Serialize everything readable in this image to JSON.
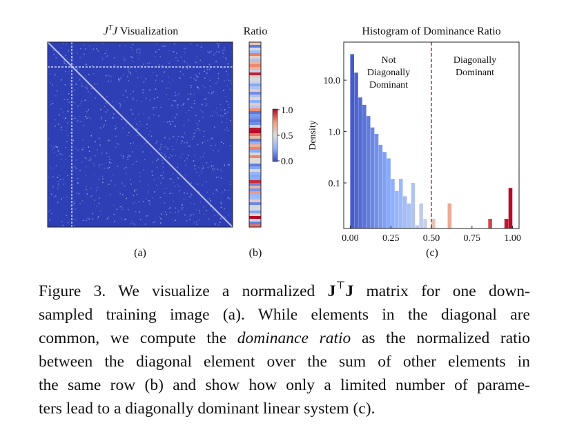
{
  "panel_a": {
    "title_prefix": "J",
    "title_sup": "T",
    "title_mid": "J",
    "title_suffix": " Visualization",
    "sublabel": "(a)"
  },
  "panel_b": {
    "title": "Ratio",
    "sublabel": "(b)",
    "colorbar_ticks": [
      "1.0",
      "0.5",
      "0.0"
    ]
  },
  "chart_data": {
    "type": "bar",
    "title": "Histogram of Dominance Ratio",
    "xlabel": "",
    "ylabel": "Density",
    "sublabel": "(c)",
    "x_ticks": [
      "0.00",
      "0.25",
      "0.50",
      "0.75",
      "1.00"
    ],
    "y_ticks": [
      "0.1",
      "1.0",
      "10.0"
    ],
    "y_scale": "log",
    "xlim": [
      -0.04,
      1.04
    ],
    "ylim": [
      0.013,
      55
    ],
    "threshold": 0.5,
    "annotations": {
      "left": [
        "Not",
        "Diagonally",
        "Dominant"
      ],
      "right": [
        "Diagonally",
        "Dominant"
      ]
    },
    "bins": [
      {
        "x": 0.0125,
        "density": 32
      },
      {
        "x": 0.0375,
        "density": 14
      },
      {
        "x": 0.0625,
        "density": 4.6
      },
      {
        "x": 0.0875,
        "density": 3.3
      },
      {
        "x": 0.1125,
        "density": 2.0
      },
      {
        "x": 0.1375,
        "density": 1.2
      },
      {
        "x": 0.1625,
        "density": 0.9
      },
      {
        "x": 0.1875,
        "density": 0.55
      },
      {
        "x": 0.2125,
        "density": 0.4
      },
      {
        "x": 0.2375,
        "density": 0.3
      },
      {
        "x": 0.2625,
        "density": 0.12
      },
      {
        "x": 0.2875,
        "density": 0.07
      },
      {
        "x": 0.3125,
        "density": 0.12
      },
      {
        "x": 0.3375,
        "density": 0.055
      },
      {
        "x": 0.3625,
        "density": 0.04
      },
      {
        "x": 0.3875,
        "density": 0.1
      },
      {
        "x": 0.4125,
        "density": 0.015
      },
      {
        "x": 0.4375,
        "density": 0.04
      },
      {
        "x": 0.4625,
        "density": 0.02
      },
      {
        "x": 0.5125,
        "density": 0.02
      },
      {
        "x": 0.6125,
        "density": 0.04
      },
      {
        "x": 0.8625,
        "density": 0.02
      },
      {
        "x": 0.9625,
        "density": 0.02
      },
      {
        "x": 0.9875,
        "density": 0.08
      }
    ]
  },
  "caption": {
    "line1_a": "Figure 3.  We visualize a normalized ",
    "line1_b": "J",
    "line1_sup": "⊤",
    "line1_c": "J",
    "line1_d": " matrix for one down-",
    "line2": "sampled training image (a).  While elements in the diagonal are",
    "line3_a": "common, we compute the ",
    "line3_em": "dominance ratio",
    "line3_b": " as the normalized ratio",
    "line4": "between the diagonal element over the sum of other elements in",
    "line5": "the same row (b) and show how only a limited number of parame-",
    "line6": "ters lead to a diagonally dominant linear system (c)."
  },
  "colors": {
    "matrix_bg": "#2e3fb5",
    "low": "#3b4cc0",
    "mid": "#dddddd",
    "high": "#b40426",
    "threshold_line": "#e02020"
  }
}
